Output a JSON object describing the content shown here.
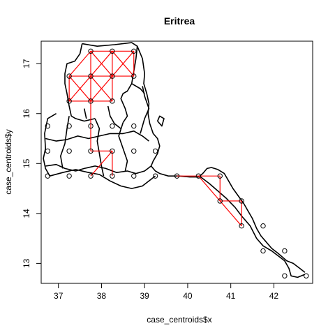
{
  "chart_data": {
    "type": "scatter",
    "title": "Eritrea",
    "xlabel": "case_centroids$x",
    "ylabel": "case_centroids$y",
    "xlim": [
      36.6,
      42.9
    ],
    "ylim": [
      12.6,
      17.45
    ],
    "x_ticks": [
      37,
      38,
      39,
      40,
      41,
      42
    ],
    "y_ticks": [
      13,
      14,
      15,
      16,
      17
    ],
    "colors": {
      "points": "#000000",
      "edges": "#ff0000",
      "boundaries": "#000000",
      "frame": "#000000"
    },
    "points": [
      {
        "x": 37.75,
        "y": 17.25
      },
      {
        "x": 38.25,
        "y": 17.25
      },
      {
        "x": 38.75,
        "y": 17.25
      },
      {
        "x": 37.25,
        "y": 16.75
      },
      {
        "x": 37.75,
        "y": 16.75
      },
      {
        "x": 38.25,
        "y": 16.75
      },
      {
        "x": 38.75,
        "y": 16.75
      },
      {
        "x": 37.25,
        "y": 16.25
      },
      {
        "x": 37.75,
        "y": 16.25
      },
      {
        "x": 38.25,
        "y": 16.25
      },
      {
        "x": 36.75,
        "y": 15.75
      },
      {
        "x": 37.25,
        "y": 15.75
      },
      {
        "x": 37.75,
        "y": 15.75
      },
      {
        "x": 38.25,
        "y": 15.75
      },
      {
        "x": 38.75,
        "y": 15.75
      },
      {
        "x": 36.75,
        "y": 15.25
      },
      {
        "x": 37.25,
        "y": 15.25
      },
      {
        "x": 37.75,
        "y": 15.25
      },
      {
        "x": 38.25,
        "y": 15.25
      },
      {
        "x": 38.75,
        "y": 15.25
      },
      {
        "x": 39.25,
        "y": 15.25
      },
      {
        "x": 36.75,
        "y": 14.75
      },
      {
        "x": 37.25,
        "y": 14.75
      },
      {
        "x": 37.75,
        "y": 14.75
      },
      {
        "x": 38.25,
        "y": 14.75
      },
      {
        "x": 38.75,
        "y": 14.75
      },
      {
        "x": 39.25,
        "y": 14.75
      },
      {
        "x": 39.75,
        "y": 14.75
      },
      {
        "x": 40.25,
        "y": 14.75
      },
      {
        "x": 40.75,
        "y": 14.75
      },
      {
        "x": 40.75,
        "y": 14.25
      },
      {
        "x": 41.25,
        "y": 14.25
      },
      {
        "x": 41.25,
        "y": 13.75
      },
      {
        "x": 41.75,
        "y": 13.75
      },
      {
        "x": 41.75,
        "y": 13.25
      },
      {
        "x": 42.25,
        "y": 13.25
      },
      {
        "x": 42.25,
        "y": 12.75
      },
      {
        "x": 42.75,
        "y": 12.75
      }
    ],
    "edges": [
      [
        37.75,
        17.25,
        38.25,
        17.25
      ],
      [
        38.25,
        17.25,
        38.75,
        17.25
      ],
      [
        37.25,
        16.75,
        37.75,
        16.75
      ],
      [
        37.75,
        16.75,
        38.25,
        16.75
      ],
      [
        38.25,
        16.75,
        38.75,
        16.75
      ],
      [
        37.25,
        16.25,
        37.75,
        16.25
      ],
      [
        37.75,
        16.25,
        38.25,
        16.25
      ],
      [
        37.75,
        17.25,
        37.75,
        16.75
      ],
      [
        38.25,
        17.25,
        38.25,
        16.75
      ],
      [
        38.75,
        17.25,
        38.75,
        16.75
      ],
      [
        37.25,
        16.75,
        37.25,
        16.25
      ],
      [
        37.75,
        16.75,
        37.75,
        16.25
      ],
      [
        38.25,
        16.75,
        38.25,
        16.25
      ],
      [
        37.75,
        17.25,
        38.25,
        16.75
      ],
      [
        38.25,
        17.25,
        37.75,
        16.75
      ],
      [
        38.25,
        17.25,
        38.75,
        16.75
      ],
      [
        38.75,
        17.25,
        38.25,
        16.75
      ],
      [
        37.75,
        17.25,
        37.25,
        16.75
      ],
      [
        37.25,
        16.75,
        37.75,
        16.25
      ],
      [
        37.75,
        16.75,
        37.25,
        16.25
      ],
      [
        37.75,
        16.75,
        38.25,
        16.25
      ],
      [
        38.25,
        16.75,
        37.75,
        16.25
      ],
      [
        37.75,
        16.25,
        37.75,
        15.75
      ],
      [
        37.75,
        15.75,
        37.75,
        15.25
      ],
      [
        37.75,
        15.25,
        38.25,
        15.25
      ],
      [
        38.25,
        15.25,
        38.25,
        14.75
      ],
      [
        37.75,
        14.75,
        38.25,
        15.25
      ],
      [
        39.75,
        14.75,
        40.25,
        14.75
      ],
      [
        40.25,
        14.75,
        40.75,
        14.75
      ],
      [
        40.75,
        14.75,
        40.75,
        14.25
      ],
      [
        40.75,
        14.25,
        41.25,
        14.25
      ],
      [
        41.25,
        14.25,
        41.25,
        13.75
      ],
      [
        40.25,
        14.75,
        41.25,
        13.75
      ]
    ]
  }
}
